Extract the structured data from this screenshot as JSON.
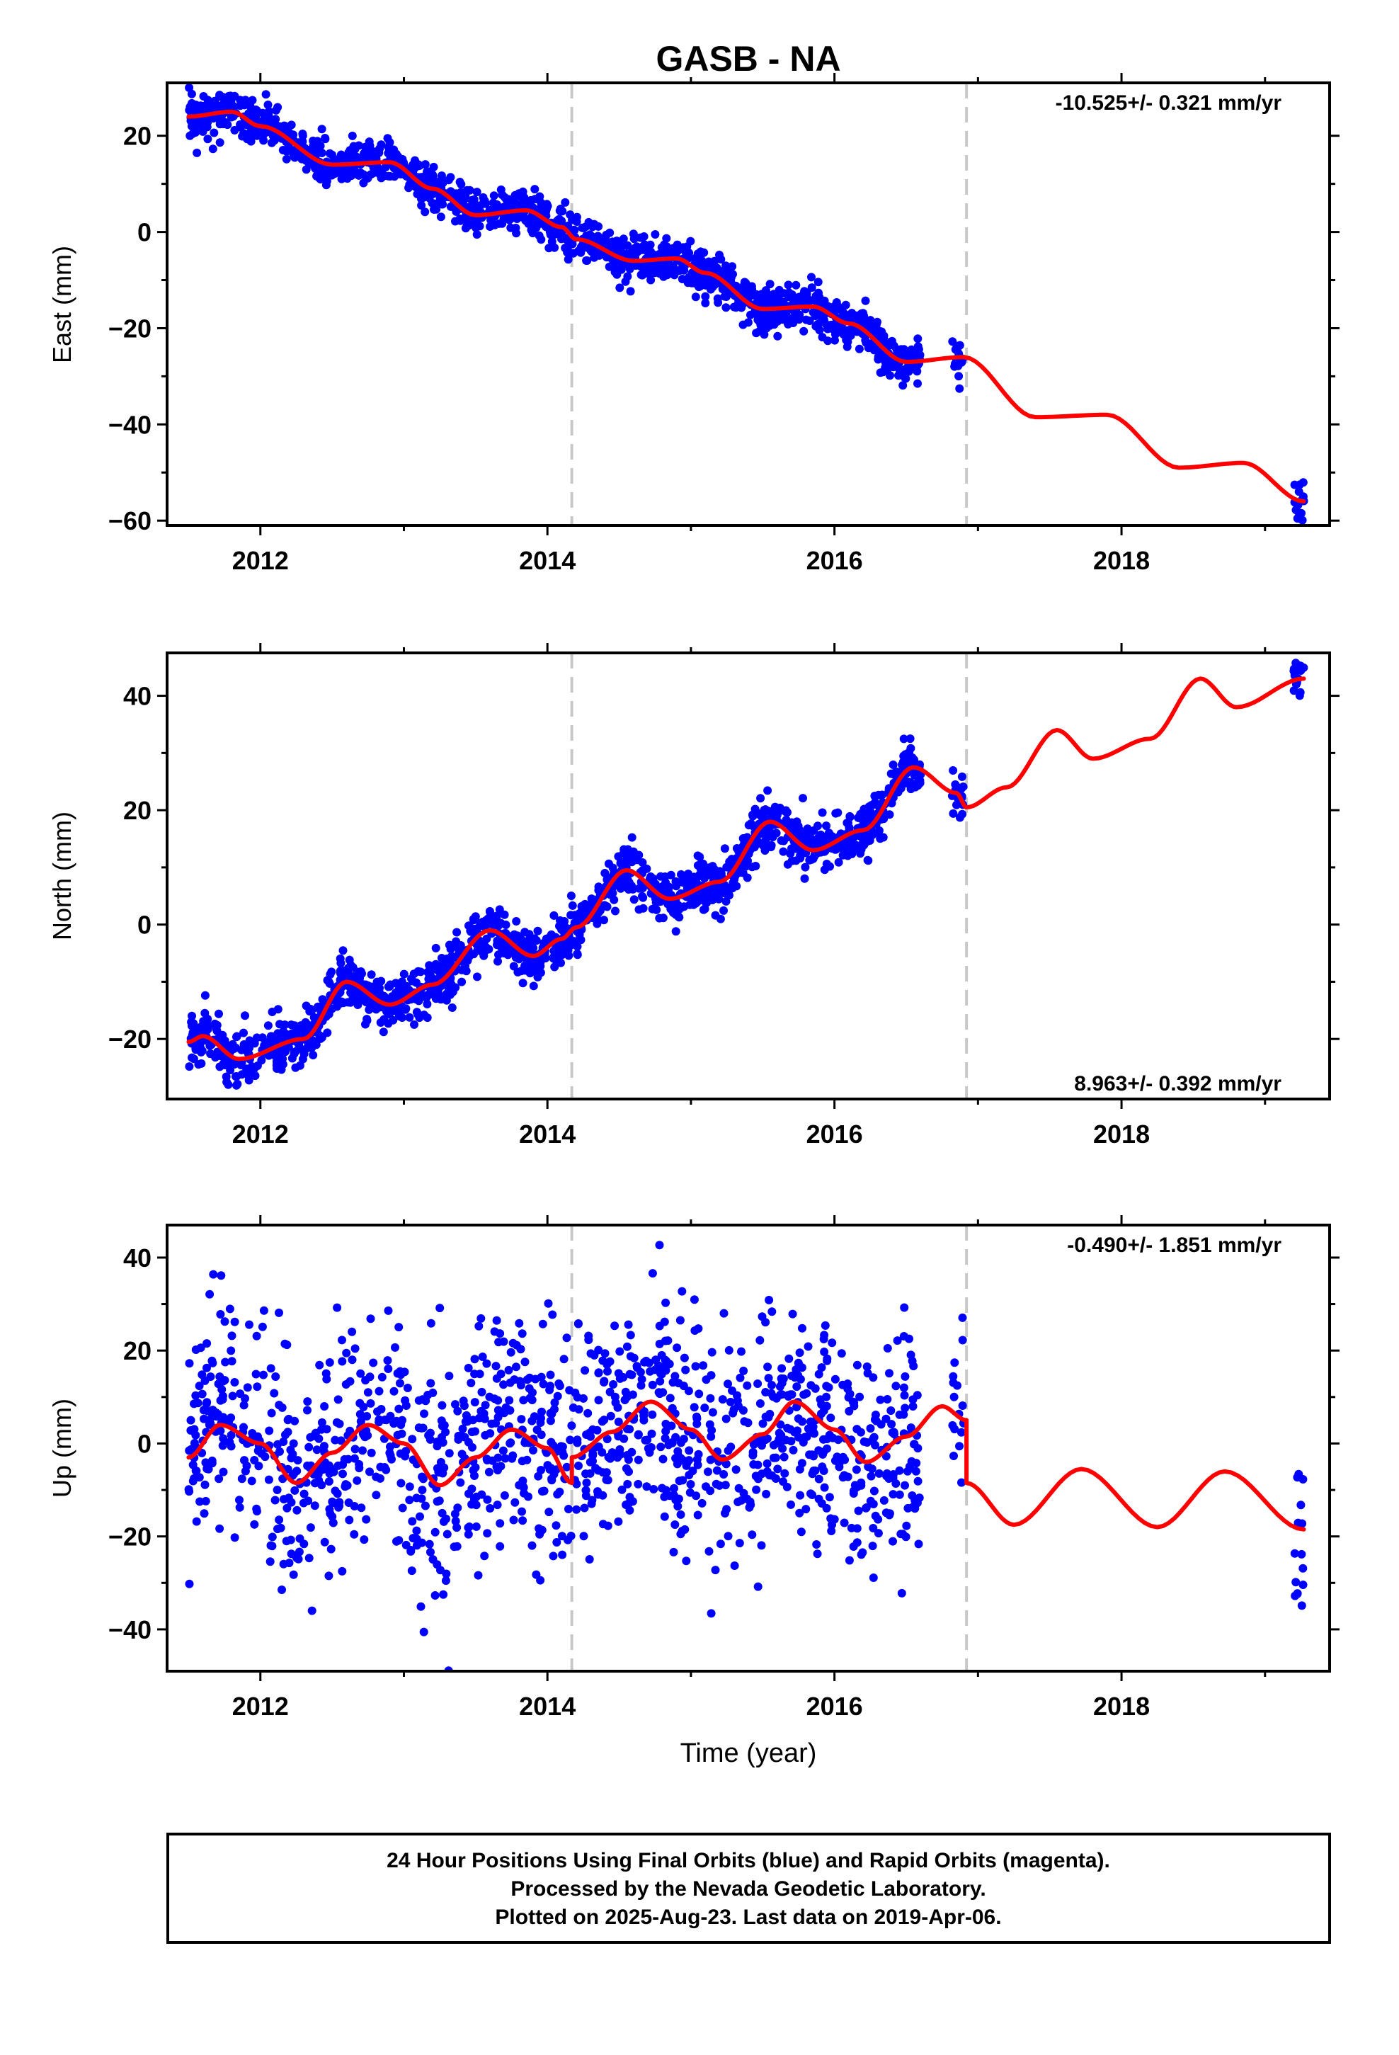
{
  "title": "GASB - NA",
  "xlabel": "Time (year)",
  "x_tick_labels": [
    "2012",
    "2014",
    "2016",
    "2018"
  ],
  "footer": {
    "line1": "24 Hour Positions Using Final Orbits (blue) and Rapid Orbits (magenta).",
    "line2": "Processed by the Nevada Geodetic Laboratory.",
    "line3": "Plotted on 2025-Aug-23. Last data on 2019-Apr-06."
  },
  "colors": {
    "data": "#0000ff",
    "model": "#ff0000",
    "breaks": "#c8c8c8",
    "frame": "#000000"
  },
  "chart_data": [
    {
      "type": "scatter",
      "ylabel": "East (mm)",
      "rate_label": "-10.525+/- 0.321 mm/yr",
      "rate_position": "top-right",
      "xlim": [
        2011.35,
        2019.45
      ],
      "ylim": [
        -61,
        31
      ],
      "xticks": [
        2012,
        2014,
        2016,
        2018
      ],
      "yticks": [
        20,
        0,
        -20,
        -40,
        -60
      ],
      "ytick_labels": [
        "20",
        "0",
        "−20",
        "−40",
        "−60"
      ],
      "breaks": [
        2014.17,
        2016.92
      ],
      "data_span": [
        2011.5,
        2016.6
      ],
      "late_cluster": [
        2016.82,
        2016.9
      ],
      "final_cluster": [
        2019.2,
        2019.27
      ],
      "scatter_sd": 2.2,
      "model": {
        "x": [
          2011.5,
          2011.8,
          2012.0,
          2012.5,
          2012.9,
          2013.2,
          2013.5,
          2013.85,
          2014.1,
          2014.2,
          2014.6,
          2014.9,
          2015.1,
          2015.5,
          2015.85,
          2016.1,
          2016.5,
          2016.9,
          2017.4,
          2017.9,
          2018.4,
          2018.85,
          2019.27
        ],
        "y": [
          24,
          25,
          22,
          14,
          14.5,
          9,
          3.5,
          4.5,
          1,
          -1.5,
          -6,
          -5.5,
          -8.5,
          -16,
          -15.5,
          -19,
          -27,
          -26,
          -38.5,
          -38,
          -49,
          -48,
          -56
        ]
      },
      "final_y": [
        -52,
        -60
      ]
    },
    {
      "type": "scatter",
      "ylabel": "North (mm)",
      "rate_label": "8.963+/- 0.392 mm/yr",
      "rate_position": "bottom-right",
      "xlim": [
        2011.35,
        2019.45
      ],
      "ylim": [
        -30.5,
        47.5
      ],
      "xticks": [
        2012,
        2014,
        2016,
        2018
      ],
      "yticks": [
        40,
        20,
        0,
        -20
      ],
      "ytick_labels": [
        "40",
        "20",
        "0",
        "−20"
      ],
      "breaks": [
        2014.17,
        2016.92
      ],
      "data_span": [
        2011.5,
        2016.6
      ],
      "late_cluster": [
        2016.82,
        2016.9
      ],
      "final_cluster": [
        2019.2,
        2019.27
      ],
      "scatter_sd": 2.2,
      "model": {
        "x": [
          2011.5,
          2011.6,
          2011.85,
          2012.3,
          2012.6,
          2012.9,
          2013.2,
          2013.6,
          2013.9,
          2014.1,
          2014.2,
          2014.55,
          2014.85,
          2015.2,
          2015.55,
          2015.85,
          2016.2,
          2016.55,
          2016.85,
          2016.92,
          2017.2,
          2017.55,
          2017.8,
          2018.2,
          2018.55,
          2018.8,
          2019.27
        ],
        "y": [
          -20.5,
          -19.5,
          -23.5,
          -20,
          -10,
          -14,
          -10.5,
          -1,
          -5.5,
          -2.5,
          -0.5,
          9.5,
          4.5,
          7.5,
          18,
          13,
          16.5,
          27.5,
          23,
          20.5,
          24,
          34,
          29,
          32.5,
          43,
          38,
          43
        ]
      },
      "final_y": [
        40,
        46
      ]
    },
    {
      "type": "scatter",
      "ylabel": "Up (mm)",
      "rate_label": "-0.490+/- 1.851 mm/yr",
      "rate_position": "top-right",
      "xlim": [
        2011.35,
        2019.45
      ],
      "ylim": [
        -49,
        47
      ],
      "xticks": [
        2012,
        2014,
        2016,
        2018
      ],
      "yticks": [
        40,
        20,
        0,
        -20,
        -40
      ],
      "ytick_labels": [
        "40",
        "20",
        "0",
        "−20",
        "−40"
      ],
      "breaks": [
        2014.17,
        2016.92
      ],
      "data_span": [
        2011.5,
        2016.6
      ],
      "late_cluster": [
        2016.82,
        2016.9
      ],
      "final_cluster": [
        2019.2,
        2019.27
      ],
      "scatter_sd": 12,
      "model": {
        "x": [
          2011.5,
          2011.72,
          2012.0,
          2012.25,
          2012.5,
          2012.75,
          2013.0,
          2013.25,
          2013.5,
          2013.75,
          2014.0,
          2014.17,
          2014.17,
          2014.45,
          2014.72,
          2015.0,
          2015.22,
          2015.5,
          2015.72,
          2016.0,
          2016.22,
          2016.5,
          2016.75,
          2016.92,
          2016.92,
          2017.25,
          2017.72,
          2018.25,
          2018.72,
          2019.27
        ],
        "y": [
          -3,
          4,
          0,
          -8.5,
          -2,
          4,
          0,
          -9,
          -3,
          3,
          -1,
          -8.5,
          -3,
          2.5,
          9,
          3,
          -3.5,
          2,
          9,
          3,
          -4,
          1.5,
          8,
          5,
          -8.5,
          -17.5,
          -5.5,
          -18,
          -6,
          -18.5
        ]
      },
      "final_y": [
        -35,
        -5
      ]
    }
  ]
}
